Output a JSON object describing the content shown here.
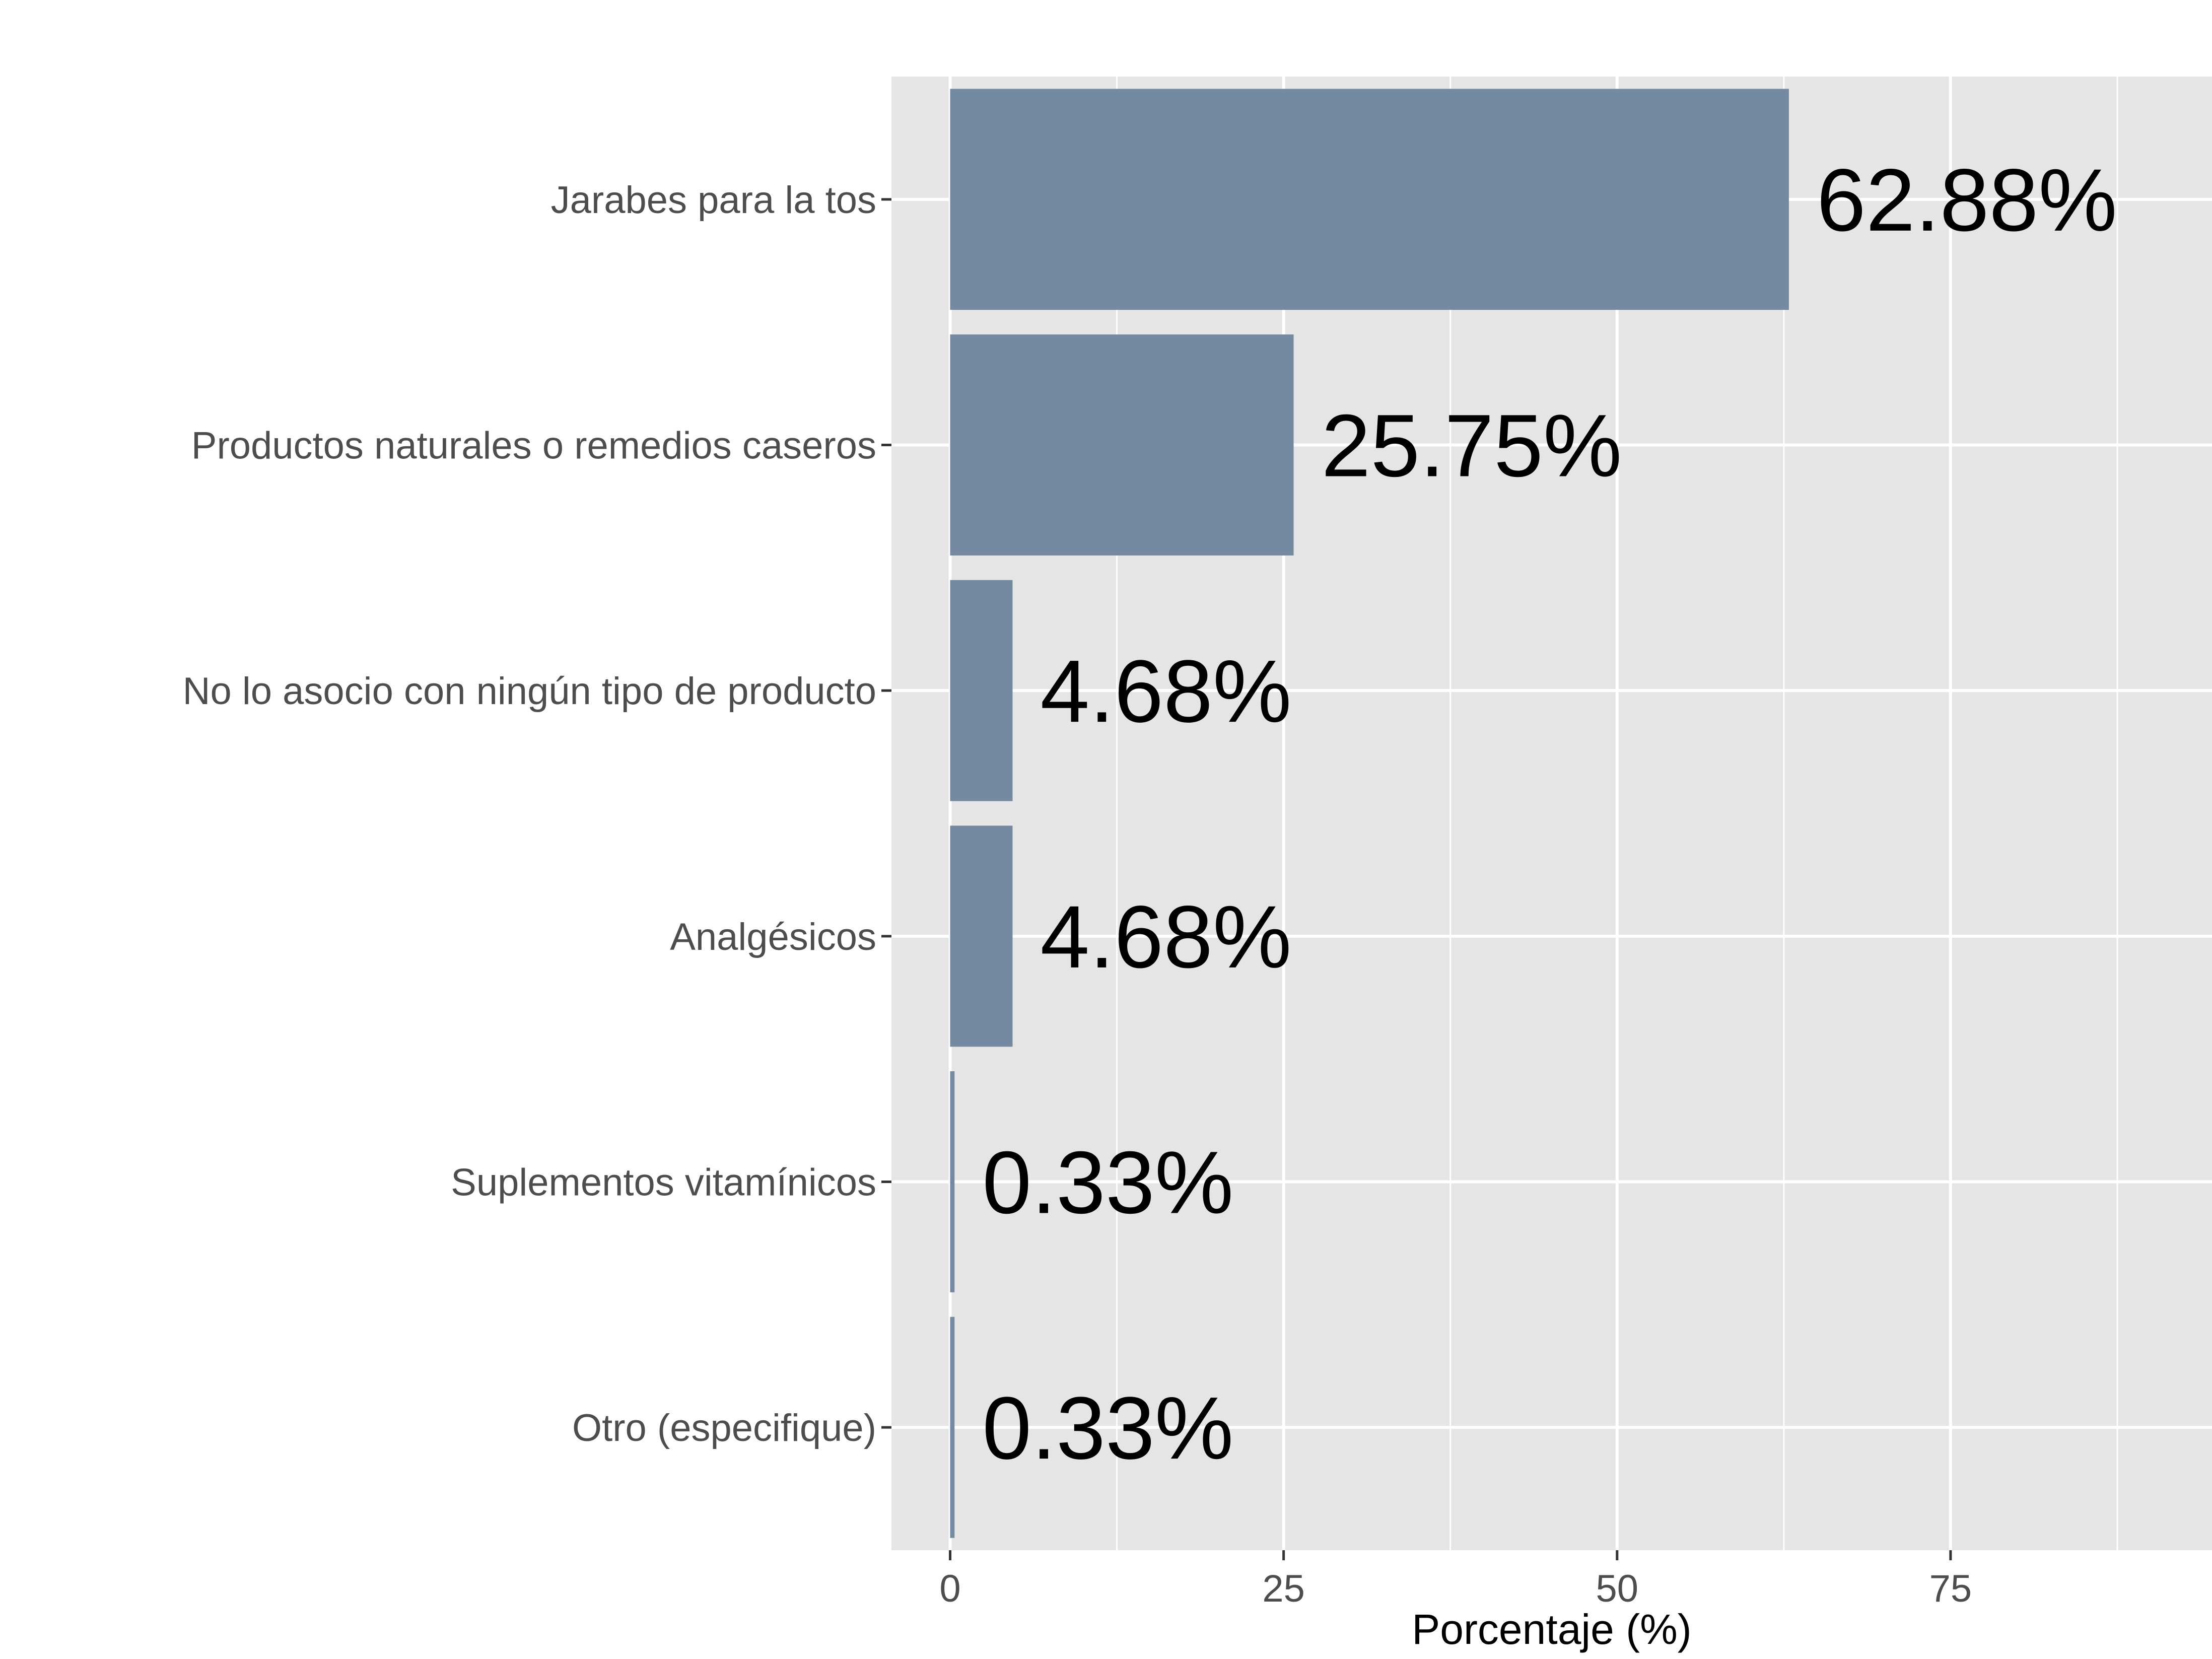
{
  "chart_data": {
    "type": "bar",
    "orientation": "horizontal",
    "categories": [
      "Jarabes para la tos",
      "Productos naturales o remedios caseros",
      "No lo asocio con ningún tipo de producto",
      "Analgésicos",
      "Suplementos vitamínicos",
      "Otro (especifique)"
    ],
    "values": [
      62.88,
      25.75,
      4.68,
      4.68,
      0.33,
      0.33
    ],
    "data_labels": [
      "62.88%",
      "25.75%",
      "4.68%",
      "4.68%",
      "0.33%",
      "0.33%"
    ],
    "xlabel": "Porcentaje (%)",
    "ylabel": "",
    "xlim": [
      -4.4,
      94.6
    ],
    "xticks": [
      0,
      25,
      50,
      75
    ],
    "xtick_labels": [
      "0",
      "25",
      "50",
      "75"
    ],
    "grid": true,
    "colors": {
      "bar": "#748aa1",
      "panel": "#e5e5e5",
      "grid": "#ffffff",
      "axis_text": "#4d4d4d",
      "label_text": "#000000"
    }
  }
}
